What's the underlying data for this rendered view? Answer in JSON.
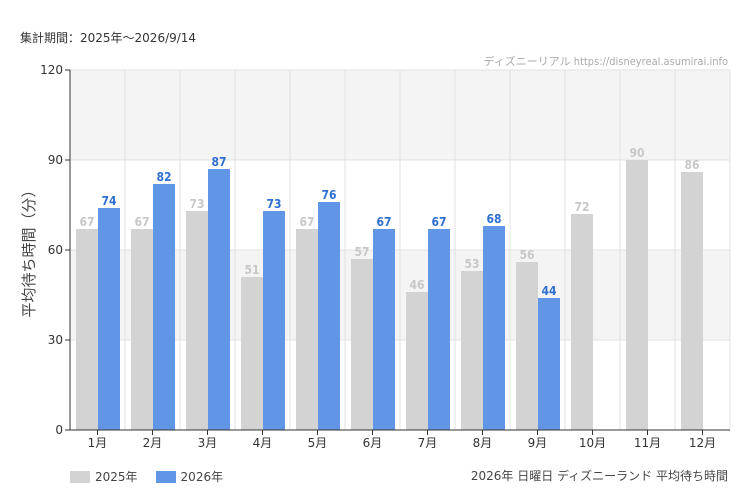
{
  "period_text": "集計期間：2025年～2026/9/14",
  "credit_text": "ディズニーリアル https://disneyreal.asumirai.info",
  "footer_text": "2026年 日曜日 ディズニーランド 平均待ち時間",
  "colors": {
    "s2025": "#d3d3d3",
    "s2026": "#6196e6",
    "label2026": "#2f6fd0",
    "label2025": "#c8c8c8",
    "band": "#f4f4f4",
    "grid": "#e2e2e2",
    "axis": "#333333"
  },
  "chart_data": {
    "type": "bar",
    "ylabel": "平均待ち時間（分）",
    "ylim": [
      0,
      120
    ],
    "yticks": [
      0,
      30,
      60,
      90,
      120
    ],
    "categories": [
      "1月",
      "2月",
      "3月",
      "4月",
      "5月",
      "6月",
      "7月",
      "8月",
      "9月",
      "10月",
      "11月",
      "12月"
    ],
    "series": [
      {
        "name": "2025年",
        "values": [
          67,
          67,
          73,
          51,
          67,
          57,
          46,
          53,
          56,
          72,
          90,
          86
        ]
      },
      {
        "name": "2026年",
        "values": [
          74,
          82,
          87,
          73,
          76,
          67,
          67,
          68,
          44,
          null,
          null,
          null
        ]
      }
    ],
    "grid": true,
    "legend": "bottom-left"
  }
}
